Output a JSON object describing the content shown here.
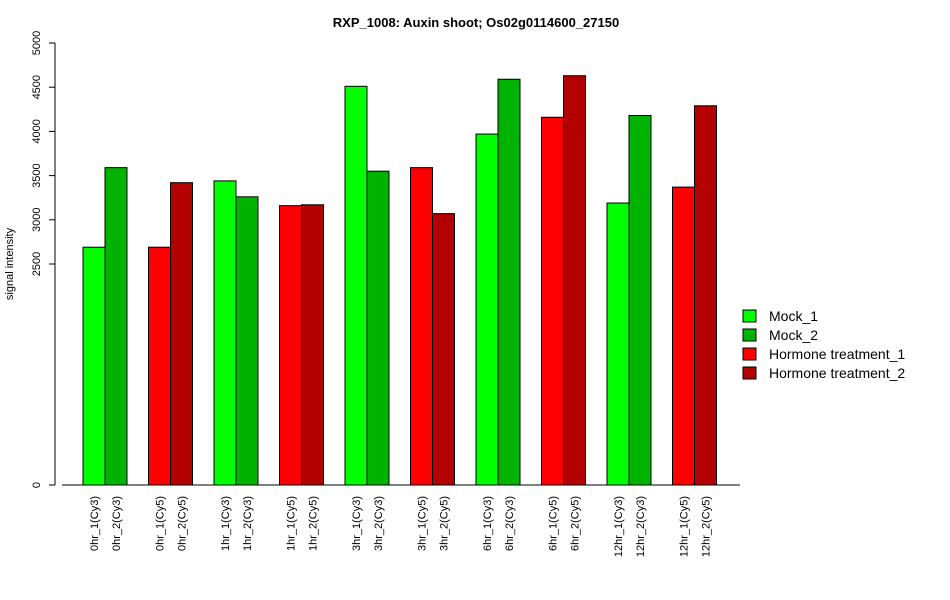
{
  "chart_data": {
    "type": "bar",
    "title": "RXP_1008: Auxin shoot; Os02g0114600_27150",
    "ylabel": "signal intensity",
    "xlabel": "",
    "ylim": [
      0,
      5000
    ],
    "yticks": [
      0,
      2500,
      3000,
      3500,
      4000,
      4500,
      5000
    ],
    "grid": false,
    "legend_position": "right",
    "series": [
      {
        "name": "Mock_1",
        "color": "#00ff00"
      },
      {
        "name": "Mock_2",
        "color": "#00b300"
      },
      {
        "name": "Hormone treatment_1",
        "color": "#ff0000"
      },
      {
        "name": "Hormone treatment_2",
        "color": "#b30000"
      }
    ],
    "bars": [
      {
        "label": "0hr_1(Cy3)",
        "value": 2690,
        "series": 0
      },
      {
        "label": "0hr_2(Cy3)",
        "value": 3590,
        "series": 1
      },
      {
        "label": "0hr_1(Cy5)",
        "value": 2690,
        "series": 2
      },
      {
        "label": "0hr_2(Cy5)",
        "value": 3420,
        "series": 3
      },
      {
        "label": "1hr_1(Cy3)",
        "value": 3440,
        "series": 0
      },
      {
        "label": "1hr_2(Cy3)",
        "value": 3260,
        "series": 1
      },
      {
        "label": "1hr_1(Cy5)",
        "value": 3160,
        "series": 2
      },
      {
        "label": "1hr_2(Cy5)",
        "value": 3170,
        "series": 3
      },
      {
        "label": "3hr_1(Cy3)",
        "value": 4510,
        "series": 0
      },
      {
        "label": "3hr_2(Cy3)",
        "value": 3550,
        "series": 1
      },
      {
        "label": "3hr_1(Cy5)",
        "value": 3590,
        "series": 2
      },
      {
        "label": "3hr_2(Cy5)",
        "value": 3070,
        "series": 3
      },
      {
        "label": "6hr_1(Cy3)",
        "value": 3970,
        "series": 0
      },
      {
        "label": "6hr_2(Cy3)",
        "value": 4590,
        "series": 1
      },
      {
        "label": "6hr_1(Cy5)",
        "value": 4160,
        "series": 2
      },
      {
        "label": "6hr_2(Cy5)",
        "value": 4630,
        "series": 3
      },
      {
        "label": "12hr_1(Cy3)",
        "value": 3190,
        "series": 0
      },
      {
        "label": "12hr_2(Cy3)",
        "value": 4180,
        "series": 1
      },
      {
        "label": "12hr_1(Cy5)",
        "value": 3370,
        "series": 2
      },
      {
        "label": "12hr_2(Cy5)",
        "value": 4290,
        "series": 3
      }
    ]
  }
}
